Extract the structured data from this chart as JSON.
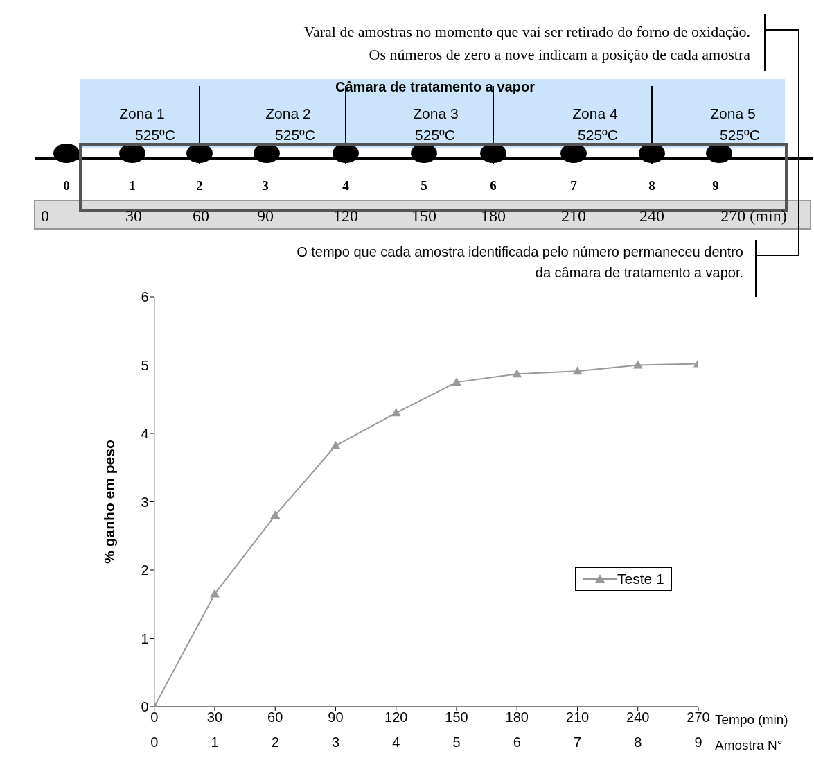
{
  "chart_data": {
    "type": "line",
    "ylabel": "% ganho em peso",
    "xlabel": "Tempo (min)",
    "x2label": "Amostra N°",
    "x": [
      0,
      30,
      60,
      90,
      120,
      150,
      180,
      210,
      240,
      270
    ],
    "series": [
      {
        "name": "Teste 1",
        "color": "#999999",
        "values": [
          0,
          1.65,
          2.8,
          3.82,
          4.3,
          4.75,
          4.87,
          4.91,
          5.0,
          5.02
        ]
      }
    ],
    "xlim": [
      0,
      270
    ],
    "xticks": [
      0,
      30,
      60,
      90,
      120,
      150,
      180,
      210,
      240,
      270
    ],
    "x2lim": [
      0,
      9
    ],
    "x2ticks": [
      0,
      1,
      2,
      3,
      4,
      5,
      6,
      7,
      8,
      9
    ],
    "ylim": [
      0,
      6
    ],
    "yticks": [
      0,
      1,
      2,
      3,
      4,
      5,
      6
    ],
    "grid": false,
    "legend": "right",
    "marker": "triangle",
    "line_style": "solid",
    "annotations": [
      "Varal de amostras no momento que vai ser retirado do forno de oxidação.",
      "Os números de zero a nove indicam a posição de cada amostra",
      "Câmara de tratamento a vapor",
      "Zona 1",
      "Zona 2",
      "Zona 3",
      "Zona 4",
      "Zona 5",
      "525ºC",
      "525ºC",
      "525ºC",
      "525ºC",
      "525ºC",
      "0",
      "1",
      "2",
      "3",
      "4",
      "5",
      "6",
      "7",
      "8",
      "9",
      "0",
      "30",
      "60",
      "90",
      "120",
      "150",
      "180",
      "210",
      "240",
      "270 (min)",
      "O tempo que cada amostra identificada pelo número permaneceu dentro",
      "da câmara de tratamento a vapor."
    ]
  }
}
